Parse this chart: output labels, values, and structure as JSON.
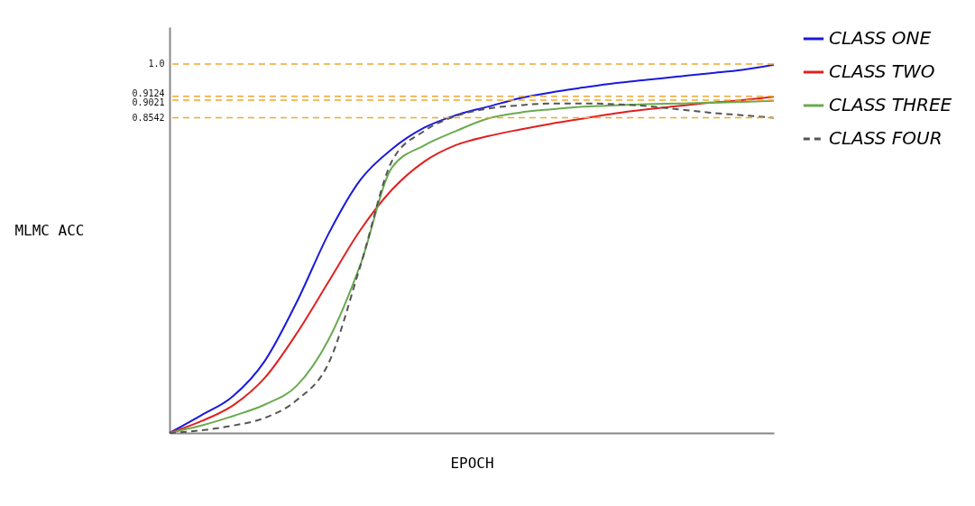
{
  "chart_data": {
    "type": "line",
    "xlabel": "EPOCH",
    "ylabel": "MLMC ACC",
    "categories": [
      null,
      null,
      null,
      null,
      null,
      null,
      null,
      null,
      null,
      null,
      null,
      null,
      null,
      null,
      null,
      null,
      null,
      null,
      null,
      null
    ],
    "ylim": [
      0,
      1.1
    ],
    "yticks": [
      0.8542,
      0.9021,
      0.9124,
      {
        "value": 1.0,
        "label": "1.0"
      }
    ],
    "grid": false,
    "legend": "right",
    "tick_labels": "y",
    "marker": "none",
    "series": [
      {
        "name": "CLASS ONE",
        "color": "#1a1adb",
        "line_style": "solid",
        "values": [
          0,
          0.048,
          0.1,
          0.196,
          0.355,
          0.54,
          0.686,
          0.77,
          0.827,
          0.861,
          0.884,
          0.907,
          0.923,
          0.936,
          0.948,
          0.957,
          0.966,
          0.975,
          0.984,
          0.998
        ]
      },
      {
        "name": "CLASS TWO",
        "color": "#e02020",
        "line_style": "solid",
        "values": [
          0,
          0.032,
          0.075,
          0.15,
          0.27,
          0.41,
          0.55,
          0.66,
          0.735,
          0.78,
          0.804,
          0.822,
          0.838,
          0.852,
          0.866,
          0.877,
          0.886,
          0.895,
          0.902,
          0.911
        ]
      },
      {
        "name": "CLASS THREE",
        "color": "#6aaa50",
        "line_style": "solid",
        "values": [
          0,
          0.02,
          0.046,
          0.077,
          0.128,
          0.253,
          0.456,
          0.72,
          0.779,
          0.818,
          0.852,
          0.868,
          0.877,
          0.884,
          0.888,
          0.891,
          0.893,
          0.895,
          0.897,
          0.9
        ]
      },
      {
        "name": "CLASS FOUR",
        "color": "#555555",
        "line_style": "dashed",
        "values": [
          0,
          0.007,
          0.02,
          0.041,
          0.089,
          0.189,
          0.453,
          0.738,
          0.818,
          0.859,
          0.879,
          0.888,
          0.893,
          0.893,
          0.891,
          0.886,
          0.877,
          0.868,
          0.861,
          0.854
        ]
      }
    ],
    "ref_lines": [
      {
        "axis": "y",
        "value": 1.0,
        "color": "#f0a830",
        "line_style": "dashed"
      },
      {
        "axis": "y",
        "value": 0.9124,
        "color": "#f0a830",
        "line_style": "dashed"
      },
      {
        "axis": "y",
        "value": 0.9021,
        "color": "#f0a830",
        "line_style": "dashed"
      },
      {
        "axis": "y",
        "value": 0.8542,
        "color": "#f0a830",
        "line_style": "dashed"
      }
    ]
  }
}
